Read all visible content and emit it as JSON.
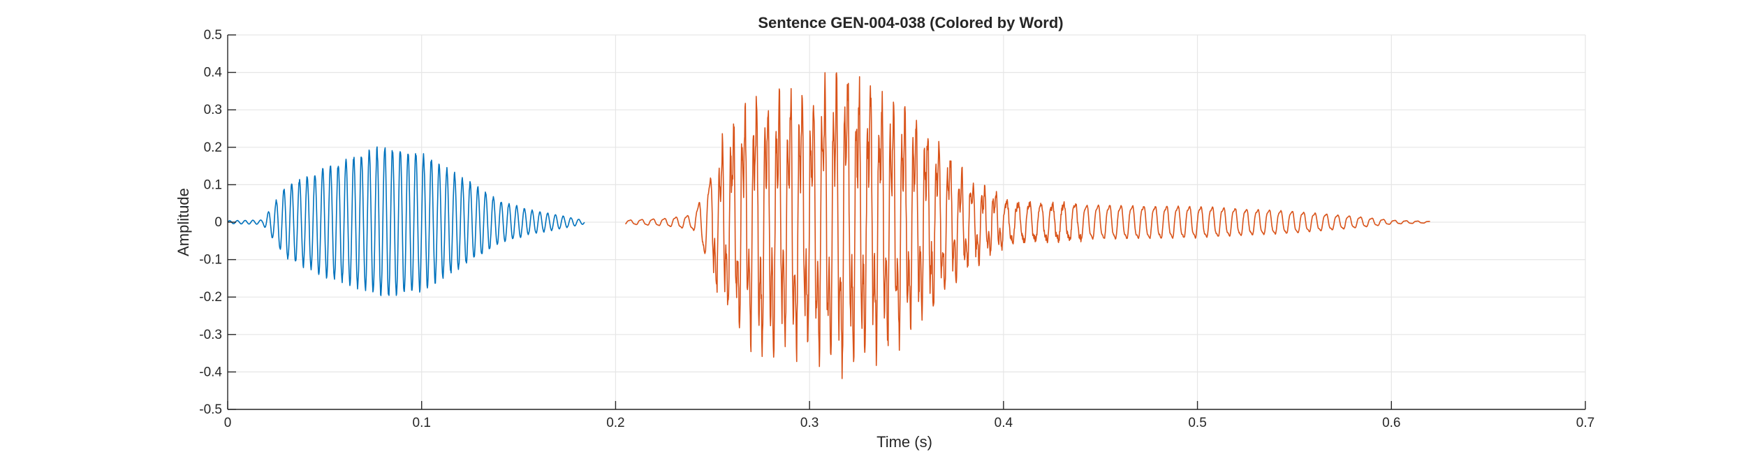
{
  "chart_data": {
    "type": "line",
    "title": "Sentence GEN-004-038 (Colored by Word)",
    "xlabel": "Time (s)",
    "ylabel": "Amplitude",
    "xlim": [
      0,
      0.7
    ],
    "ylim": [
      -0.5,
      0.5
    ],
    "xticks": [
      0,
      0.1,
      0.2,
      0.3,
      0.4,
      0.5,
      0.6,
      0.7
    ],
    "xtick_labels": [
      "0",
      "0.1",
      "0.2",
      "0.3",
      "0.4",
      "0.5",
      "0.6",
      "0.7"
    ],
    "yticks": [
      0.5,
      0.4,
      0.3,
      0.2,
      0.1,
      0,
      -0.1,
      -0.2,
      -0.3,
      -0.4,
      -0.5
    ],
    "ytick_labels": [
      "0.5",
      "0.4",
      "0.3",
      "0.2",
      "0.1",
      "0",
      "-0.1",
      "-0.2",
      "-0.3",
      "-0.4",
      "-0.5"
    ],
    "grid": true,
    "series": [
      {
        "color": "#0072BD",
        "t_start": 0.0,
        "t_end": 0.184,
        "envelope": [
          [
            0,
            0.004
          ],
          [
            0.018,
            0.006
          ],
          [
            0.025,
            0.06
          ],
          [
            0.03,
            0.1
          ],
          [
            0.05,
            0.15
          ],
          [
            0.065,
            0.18
          ],
          [
            0.08,
            0.21
          ],
          [
            0.095,
            0.2
          ],
          [
            0.11,
            0.16
          ],
          [
            0.125,
            0.11
          ],
          [
            0.14,
            0.06
          ],
          [
            0.155,
            0.035
          ],
          [
            0.17,
            0.02
          ],
          [
            0.184,
            0.005
          ]
        ]
      },
      {
        "color": "#D95319",
        "t_start": 0.205,
        "t_end": 0.62,
        "envelope": [
          [
            0.205,
            0.008
          ],
          [
            0.225,
            0.015
          ],
          [
            0.24,
            0.03
          ],
          [
            0.25,
            0.2
          ],
          [
            0.26,
            0.3
          ],
          [
            0.275,
            0.4
          ],
          [
            0.29,
            0.4
          ],
          [
            0.3,
            0.4
          ],
          [
            0.31,
            0.45
          ],
          [
            0.32,
            0.46
          ],
          [
            0.33,
            0.43
          ],
          [
            0.345,
            0.37
          ],
          [
            0.36,
            0.3
          ],
          [
            0.38,
            0.15
          ],
          [
            0.4,
            0.08
          ],
          [
            0.45,
            0.07
          ],
          [
            0.5,
            0.065
          ],
          [
            0.55,
            0.045
          ],
          [
            0.58,
            0.025
          ],
          [
            0.6,
            0.008
          ],
          [
            0.62,
            0.003
          ]
        ]
      }
    ]
  }
}
